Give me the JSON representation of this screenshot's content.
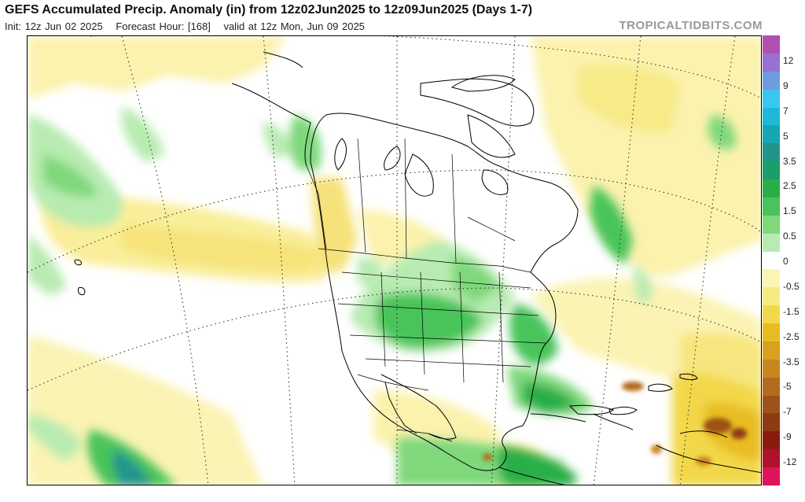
{
  "header": {
    "title": "GEFS Accumulated Precip. Anomaly (in) from 12z02Jun2025 to 12z09Jun2025 (Days 1-7)",
    "init": "Init: 12z Jun 02 2025",
    "forecast_hour": "Forecast Hour: [168]",
    "valid": "valid at 12z Mon, Jun 09 2025",
    "credit": "TROPICALTIDBITS.COM"
  },
  "legend": {
    "unit": "in",
    "colors": [
      "#b150b1",
      "#9a6fd2",
      "#6f9cdf",
      "#39c6f0",
      "#1fb8d8",
      "#18a6b4",
      "#21958c",
      "#1a9e6a",
      "#29ae48",
      "#49c45a",
      "#7fd87c",
      "#b8ebb1",
      "#ffffff",
      "#fbf4b5",
      "#f7ea82",
      "#f2d84a",
      "#e8bc21",
      "#d9a11d",
      "#c9861f",
      "#b16c1e",
      "#9e5219",
      "#8e3b13",
      "#8a1c0f",
      "#b0112b",
      "#e0145a"
    ],
    "labels": [
      "12",
      "9",
      "7",
      "5",
      "3.5",
      "2.5",
      "1.5",
      "0.5",
      "0",
      "-0.5",
      "-1.5",
      "-2.5",
      "-3.5",
      "-5",
      "-7",
      "-9",
      "-12"
    ]
  }
}
